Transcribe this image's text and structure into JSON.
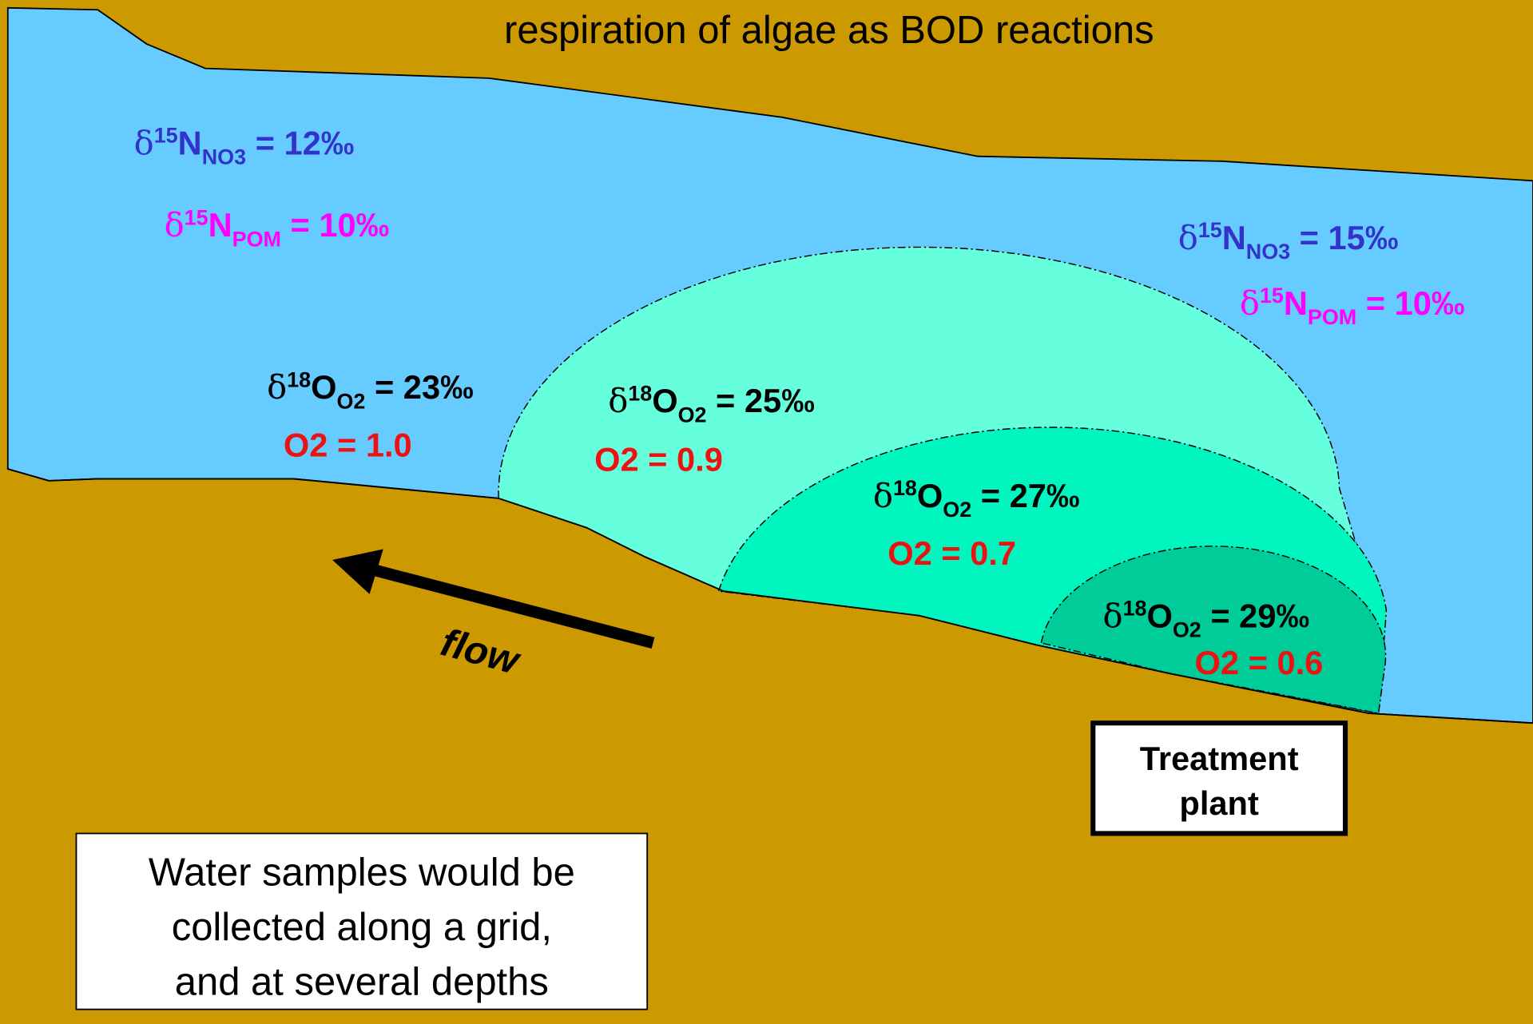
{
  "title": "respiration of algae as BOD reactions",
  "isotope_labels": [
    {
      "prefix": "δ",
      "sup": "15",
      "base": "N",
      "sub": "NO3",
      "value": " = 12‰"
    },
    {
      "prefix": "δ",
      "sup": "15",
      "base": "N",
      "sub": "POM",
      "value": " = 10‰"
    },
    {
      "prefix": "δ",
      "sup": "15",
      "base": "N",
      "sub": "NO3",
      "value": " = 15‰"
    },
    {
      "prefix": "δ",
      "sup": "15",
      "base": "N",
      "sub": "POM",
      "value": " = 10‰"
    },
    {
      "prefix": "δ",
      "sup": "18",
      "base": "O",
      "sub": "O2",
      "value": " = 23‰"
    },
    {
      "prefix": "δ",
      "sup": "18",
      "base": "O",
      "sub": "O2",
      "value": " = 25‰"
    },
    {
      "prefix": "δ",
      "sup": "18",
      "base": "O",
      "sub": "O2",
      "value": " = 27‰"
    },
    {
      "prefix": "δ",
      "sup": "18",
      "base": "O",
      "sub": "O2",
      "value": " = 29‰"
    }
  ],
  "oxygen_labels": [
    "O2  = 1.0",
    "O2 = 0.9",
    "O2 = 0.7",
    "O2 = 0.6"
  ],
  "flow_label": "flow",
  "treatment_plant": [
    "Treatment",
    "plant"
  ],
  "note": [
    "Water samples would be",
    "collected along a grid,",
    "and at several depths"
  ]
}
